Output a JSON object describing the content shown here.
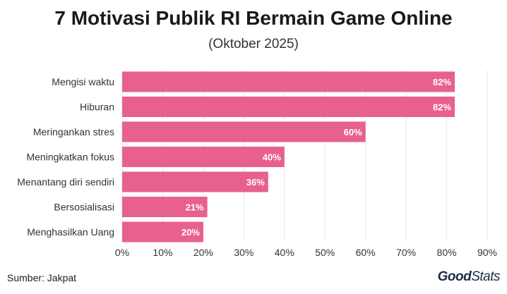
{
  "chart_data": {
    "type": "bar",
    "orientation": "horizontal",
    "title": "7 Motivasi Publik RI Bermain Game Online",
    "subtitle": "(Oktober 2025)",
    "categories": [
      "Mengisi waktu",
      "Hiburan",
      "Meringankan stres",
      "Meningkatkan fokus",
      "Menantang diri sendiri",
      "Bersosialisasi",
      "Menghasilkan Uang"
    ],
    "values": [
      82,
      82,
      60,
      40,
      36,
      21,
      20
    ],
    "value_labels": [
      "82%",
      "82%",
      "60%",
      "40%",
      "36%",
      "21%",
      "20%"
    ],
    "xlim": [
      0,
      90
    ],
    "xticks": [
      0,
      10,
      20,
      30,
      40,
      50,
      60,
      70,
      80,
      90
    ],
    "xtick_labels": [
      "0%",
      "10%",
      "20%",
      "30%",
      "40%",
      "50%",
      "60%",
      "70%",
      "80%",
      "90%"
    ],
    "grid": "vertical",
    "bar_color": "#e8608f",
    "grid_color": "#e6e6e6"
  },
  "footer": {
    "source": "Sumber: Jakpat",
    "logo_part1": "Good",
    "logo_part2": "Stats"
  }
}
